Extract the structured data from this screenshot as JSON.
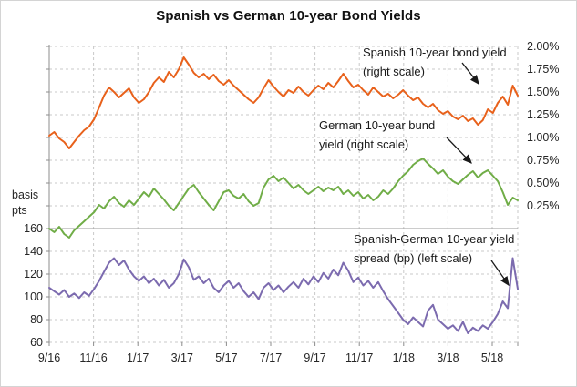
{
  "chart": {
    "title": "Spanish vs German 10-year Bond Yields"
  },
  "annotations": [
    {
      "line1": "Spanish 10-year bond yield",
      "line2": "(right scale)"
    },
    {
      "line1": "German 10-year bund",
      "line2": "yield (right scale)"
    },
    {
      "line1": "Spanish-German 10-year yield",
      "line2": "spread (bp) (left scale)"
    }
  ],
  "axis_left": {
    "unit_label": "basis pts"
  },
  "chart_data": {
    "type": "line",
    "title": "Spanish vs German 10-year Bond Yields",
    "x_tick_labels": [
      "9/16",
      "11/16",
      "1/17",
      "3/17",
      "5/17",
      "7/17",
      "9/17",
      "11/17",
      "1/18",
      "3/18",
      "5/18"
    ],
    "right_axis": {
      "labels": [
        "2.00%",
        "1.75%",
        "1.50%",
        "1.25%",
        "1.00%",
        "0.75%",
        "0.50%",
        "0.25%"
      ],
      "max": 2.0,
      "labeled_min": 0.25,
      "step": 0.25,
      "format": "percent"
    },
    "left_axis": {
      "unit": "basis pts",
      "labels": [
        "160",
        "140",
        "120",
        "100",
        "80",
        "60"
      ],
      "max": 160,
      "min": 60,
      "step": 20
    },
    "grid": true,
    "legend": "inline-annotations",
    "series": [
      {
        "name": "Spanish 10-year bond yield (right scale)",
        "axis": "right",
        "color": "#E8611B",
        "values": [
          1.02,
          1.06,
          0.99,
          0.95,
          0.88,
          0.95,
          1.02,
          1.08,
          1.12,
          1.2,
          1.33,
          1.46,
          1.55,
          1.5,
          1.44,
          1.49,
          1.54,
          1.44,
          1.38,
          1.42,
          1.5,
          1.6,
          1.66,
          1.61,
          1.72,
          1.66,
          1.75,
          1.88,
          1.8,
          1.71,
          1.66,
          1.7,
          1.64,
          1.69,
          1.62,
          1.58,
          1.63,
          1.57,
          1.52,
          1.47,
          1.42,
          1.38,
          1.44,
          1.54,
          1.63,
          1.56,
          1.5,
          1.45,
          1.52,
          1.49,
          1.56,
          1.5,
          1.46,
          1.52,
          1.57,
          1.53,
          1.6,
          1.55,
          1.62,
          1.7,
          1.62,
          1.55,
          1.58,
          1.52,
          1.47,
          1.55,
          1.5,
          1.45,
          1.48,
          1.43,
          1.47,
          1.52,
          1.46,
          1.41,
          1.44,
          1.37,
          1.33,
          1.37,
          1.3,
          1.26,
          1.29,
          1.23,
          1.2,
          1.24,
          1.18,
          1.21,
          1.14,
          1.19,
          1.31,
          1.27,
          1.38,
          1.45,
          1.36,
          1.57,
          1.46
        ]
      },
      {
        "name": "German 10-year bund yield (right scale)",
        "axis": "right",
        "color": "#70AD47",
        "values": [
          0.0,
          -0.04,
          0.02,
          -0.06,
          -0.1,
          -0.02,
          0.03,
          0.08,
          0.13,
          0.18,
          0.26,
          0.22,
          0.3,
          0.35,
          0.28,
          0.24,
          0.31,
          0.26,
          0.33,
          0.4,
          0.35,
          0.44,
          0.38,
          0.32,
          0.25,
          0.2,
          0.28,
          0.36,
          0.44,
          0.48,
          0.4,
          0.33,
          0.26,
          0.2,
          0.3,
          0.4,
          0.42,
          0.36,
          0.33,
          0.38,
          0.3,
          0.25,
          0.28,
          0.45,
          0.54,
          0.58,
          0.52,
          0.56,
          0.5,
          0.44,
          0.48,
          0.42,
          0.38,
          0.42,
          0.46,
          0.41,
          0.45,
          0.42,
          0.46,
          0.38,
          0.42,
          0.36,
          0.4,
          0.33,
          0.37,
          0.31,
          0.35,
          0.42,
          0.38,
          0.44,
          0.52,
          0.58,
          0.63,
          0.7,
          0.74,
          0.77,
          0.71,
          0.66,
          0.6,
          0.64,
          0.57,
          0.52,
          0.49,
          0.54,
          0.59,
          0.63,
          0.56,
          0.61,
          0.64,
          0.58,
          0.52,
          0.4,
          0.26,
          0.34,
          0.31
        ]
      },
      {
        "name": "Spanish-German 10-year yield spread (bp) (left scale)",
        "axis": "left",
        "color": "#7C6BAF",
        "values": [
          108,
          105,
          102,
          106,
          100,
          103,
          99,
          104,
          101,
          107,
          114,
          122,
          130,
          134,
          128,
          132,
          124,
          118,
          114,
          118,
          112,
          116,
          110,
          115,
          108,
          112,
          120,
          133,
          126,
          115,
          118,
          112,
          116,
          108,
          104,
          110,
          114,
          108,
          112,
          105,
          100,
          104,
          98,
          108,
          112,
          106,
          110,
          104,
          109,
          113,
          108,
          116,
          111,
          118,
          113,
          121,
          116,
          124,
          119,
          130,
          123,
          113,
          117,
          110,
          114,
          108,
          113,
          105,
          98,
          92,
          86,
          80,
          76,
          82,
          78,
          74,
          88,
          93,
          80,
          76,
          72,
          75,
          70,
          78,
          68,
          73,
          70,
          75,
          72,
          78,
          85,
          96,
          90,
          134,
          107
        ]
      }
    ]
  }
}
